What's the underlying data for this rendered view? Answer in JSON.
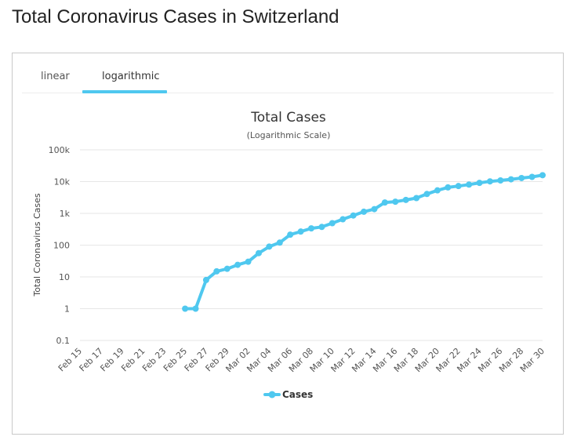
{
  "page": {
    "title": "Total Coronavirus Cases in Switzerland"
  },
  "tabs": [
    {
      "label": "linear",
      "active": false
    },
    {
      "label": "logarithmic",
      "active": true
    }
  ],
  "colors": {
    "series": "#4fc8ef",
    "grid": "#e6e6e6",
    "tab_active": "#4fc8ef"
  },
  "chart_data": {
    "type": "line",
    "title": "Total Cases",
    "subtitle": "(Logarithmic Scale)",
    "ylabel": "Total Coronavirus Cases",
    "xlabel": "",
    "y_scale": "log",
    "ylim": [
      0.1,
      100000
    ],
    "y_ticks": [
      {
        "value": 0.1,
        "label": "0.1"
      },
      {
        "value": 1,
        "label": "1"
      },
      {
        "value": 10,
        "label": "10"
      },
      {
        "value": 100,
        "label": "100"
      },
      {
        "value": 1000,
        "label": "1k"
      },
      {
        "value": 10000,
        "label": "10k"
      },
      {
        "value": 100000,
        "label": "100k"
      }
    ],
    "categories": [
      "Feb 15",
      "Feb 16",
      "Feb 17",
      "Feb 18",
      "Feb 19",
      "Feb 20",
      "Feb 21",
      "Feb 22",
      "Feb 23",
      "Feb 24",
      "Feb 25",
      "Feb 26",
      "Feb 27",
      "Feb 28",
      "Feb 29",
      "Mar 01",
      "Mar 02",
      "Mar 03",
      "Mar 04",
      "Mar 05",
      "Mar 06",
      "Mar 07",
      "Mar 08",
      "Mar 09",
      "Mar 10",
      "Mar 11",
      "Mar 12",
      "Mar 13",
      "Mar 14",
      "Mar 15",
      "Mar 16",
      "Mar 17",
      "Mar 18",
      "Mar 19",
      "Mar 20",
      "Mar 21",
      "Mar 22",
      "Mar 23",
      "Mar 24",
      "Mar 25",
      "Mar 26",
      "Mar 27",
      "Mar 28",
      "Mar 29",
      "Mar 30"
    ],
    "x_tick_labels": [
      "Feb 15",
      "Feb 17",
      "Feb 19",
      "Feb 21",
      "Feb 23",
      "Feb 25",
      "Feb 27",
      "Feb 29",
      "Mar 02",
      "Mar 04",
      "Mar 06",
      "Mar 08",
      "Mar 10",
      "Mar 12",
      "Mar 14",
      "Mar 16",
      "Mar 18",
      "Mar 20",
      "Mar 22",
      "Mar 24",
      "Mar 26",
      "Mar 28",
      "Mar 30"
    ],
    "grid": true,
    "legend_position": "bottom-center",
    "series": [
      {
        "name": "Cases",
        "values": [
          null,
          null,
          null,
          null,
          null,
          null,
          null,
          null,
          null,
          null,
          1,
          1,
          8,
          15,
          18,
          24,
          30,
          56,
          90,
          120,
          214,
          268,
          337,
          374,
          491,
          652,
          858,
          1125,
          1359,
          2200,
          2330,
          2650,
          3028,
          4075,
          5294,
          6575,
          7245,
          8060,
          9117,
          10171,
          10897,
          11811,
          12928,
          14076,
          15922
        ]
      }
    ]
  },
  "legend": {
    "label": "Cases"
  }
}
